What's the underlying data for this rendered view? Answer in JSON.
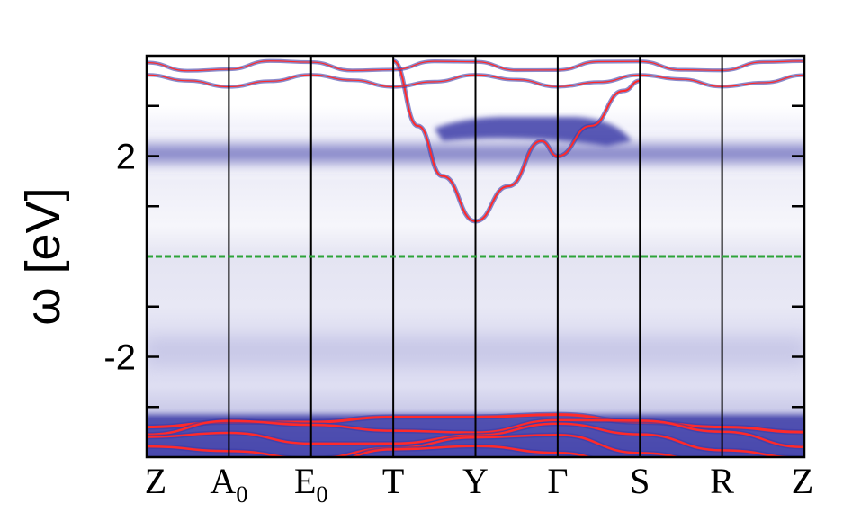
{
  "chart_data": {
    "type": "heatmap",
    "title": "",
    "xlabel": "",
    "ylabel": "ω [eV]",
    "ylim": [
      -4.0,
      4.0
    ],
    "yticks": [
      {
        "value": 2,
        "label": "2"
      },
      {
        "value": -2,
        "label": "-2"
      }
    ],
    "yminor_ticks": [
      3,
      1,
      -1,
      -3
    ],
    "k_path": [
      {
        "label": "Z",
        "main": "Z",
        "sub": ""
      },
      {
        "label": "A0",
        "main": "A",
        "sub": "0"
      },
      {
        "label": "E0",
        "main": "E",
        "sub": "0"
      },
      {
        "label": "T",
        "main": "T",
        "sub": ""
      },
      {
        "label": "Y",
        "main": "Y",
        "sub": ""
      },
      {
        "label": "Γ",
        "main": "Γ",
        "sub": ""
      },
      {
        "label": "S",
        "main": "S",
        "sub": ""
      },
      {
        "label": "R",
        "main": "R",
        "sub": ""
      },
      {
        "label": "Z",
        "main": "Z",
        "sub": ""
      }
    ],
    "fermi_level": 0,
    "colors": {
      "background": "#ffffff",
      "spectral_weight": "#3c3ca8",
      "quasiparticle_bands": "#ff2a2a",
      "fermi_line": "#2ea43a",
      "k_lines": "#000000"
    },
    "upper_hubbard_band": {
      "energy": 2.05,
      "width": 0.32
    },
    "lower_continuum": {
      "range": [
        -3.2,
        0.0
      ]
    },
    "conduction_band": [
      {
        "k": 3.0,
        "e": 3.9
      },
      {
        "k": 3.3,
        "e": 2.6
      },
      {
        "k": 3.6,
        "e": 1.6
      },
      {
        "k": 4.0,
        "e": 0.7
      },
      {
        "k": 4.4,
        "e": 1.4
      },
      {
        "k": 4.8,
        "e": 2.3
      },
      {
        "k": 5.0,
        "e": 2.0
      },
      {
        "k": 5.4,
        "e": 2.6
      },
      {
        "k": 5.8,
        "e": 3.3
      },
      {
        "k": 6.0,
        "e": 3.5
      }
    ],
    "valence_band_top": [
      {
        "k": 0.0,
        "e": -3.4
      },
      {
        "k": 1.0,
        "e": -3.3
      },
      {
        "k": 2.0,
        "e": -3.3
      },
      {
        "k": 3.0,
        "e": -3.2
      },
      {
        "k": 4.0,
        "e": -3.2
      },
      {
        "k": 5.0,
        "e": -3.15
      },
      {
        "k": 6.0,
        "e": -3.3
      },
      {
        "k": 7.0,
        "e": -3.4
      },
      {
        "k": 8.0,
        "e": -3.5
      }
    ]
  }
}
